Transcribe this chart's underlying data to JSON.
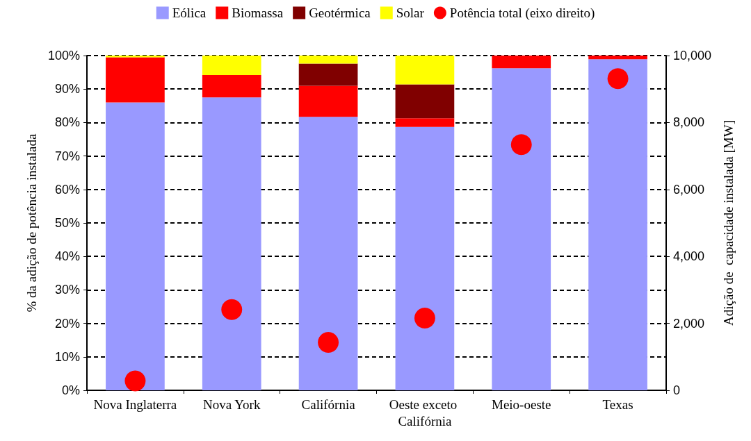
{
  "chart_data": {
    "type": "bar",
    "stacked": true,
    "ylabel": "% da adição de potência instalada",
    "y2label": "Adição de  capacidade instalada [MW]",
    "categories": [
      "Nova Inglaterra",
      "Nova York",
      "Califórnia",
      "Oeste exceto Califórnia",
      "Meio-oeste",
      "Texas"
    ],
    "series": [
      {
        "name": "Eólica",
        "color": "#9999ff",
        "values": [
          86,
          87.5,
          81.7,
          78.7,
          96.2,
          98.9
        ]
      },
      {
        "name": "Biomassa",
        "color": "#ff0000",
        "values": [
          13.5,
          6.7,
          9.3,
          2.6,
          3.8,
          1.1
        ]
      },
      {
        "name": "Geotérmica",
        "color": "#800000",
        "values": [
          0,
          0,
          6.6,
          10.1,
          0,
          0
        ]
      },
      {
        "name": "Solar",
        "color": "#ffff00",
        "values": [
          0.5,
          5.8,
          2.4,
          8.6,
          0,
          0
        ]
      },
      {
        "name": "Potência total (eixo direito)",
        "type": "scatter",
        "axis": "y2",
        "color": "#ff0000",
        "x": [
          "Nova Inglaterra",
          "Nova York",
          "Califórnia",
          "Oeste exceto Califórnia",
          "Meio-oeste",
          "Texas"
        ],
        "values": [
          280,
          2410,
          1430,
          2160,
          7340,
          9310
        ]
      }
    ],
    "ylim": [
      0,
      100
    ],
    "yticks": [
      {
        "value": 0,
        "label": "0%"
      },
      {
        "value": 10,
        "label": "10%"
      },
      {
        "value": 20,
        "label": "20%"
      },
      {
        "value": 30,
        "label": "30%"
      },
      {
        "value": 40,
        "label": "40%"
      },
      {
        "value": 50,
        "label": "50%"
      },
      {
        "value": 60,
        "label": "60%"
      },
      {
        "value": 70,
        "label": "70%"
      },
      {
        "value": 80,
        "label": "80%"
      },
      {
        "value": 90,
        "label": "90%"
      },
      {
        "value": 100,
        "label": "100%"
      }
    ],
    "y2lim": [
      0,
      10000
    ],
    "y2ticks": [
      0,
      {
        "value": 2000,
        "label": "2,000"
      },
      {
        "value": 4000,
        "label": "4,000"
      },
      {
        "value": 6000,
        "label": "6,000"
      },
      {
        "value": 8000,
        "label": "8,000"
      },
      {
        "value": 10000,
        "label": "10,000"
      }
    ],
    "grid": "y",
    "legend": "top",
    "marker": "circle"
  }
}
